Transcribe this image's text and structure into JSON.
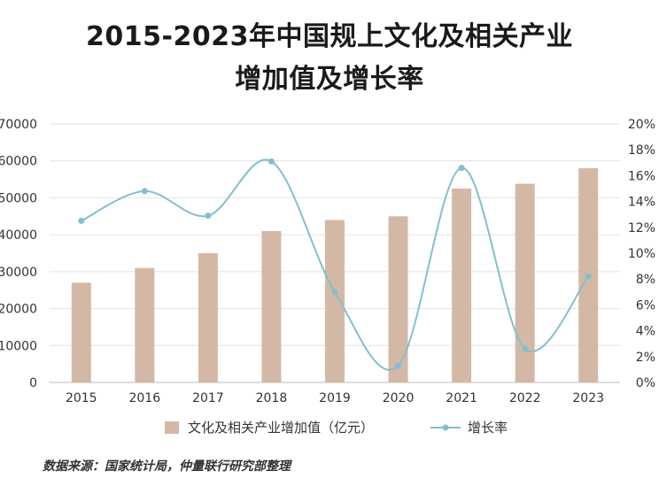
{
  "chart_data": {
    "type": "bar",
    "title_lines": [
      "2015-2023年中国规上文化及相关产业",
      "增加值及增长率"
    ],
    "categories": [
      "2015",
      "2016",
      "2017",
      "2018",
      "2019",
      "2020",
      "2021",
      "2022",
      "2023"
    ],
    "series": [
      {
        "name": "文化及相关产业增加值（亿元）",
        "type": "bar",
        "axis": "left",
        "color": "#d4b8a6",
        "values": [
          27000,
          31000,
          35000,
          41000,
          44000,
          45000,
          52500,
          53800,
          58000
        ]
      },
      {
        "name": "增长率",
        "type": "line",
        "smooth": true,
        "axis": "right",
        "color": "#84bfce",
        "values": [
          12.5,
          14.8,
          12.9,
          17.1,
          7.0,
          1.3,
          16.6,
          2.6,
          8.2
        ]
      }
    ],
    "y_left": {
      "min": 0,
      "max": 70000,
      "step": 10000
    },
    "y_right": {
      "min": 0,
      "max": 20,
      "step": 2,
      "format": "percent"
    },
    "grid": true,
    "legend_position": "bottom"
  },
  "source": "数据来源：国家统计局，仲量联行研究部整理"
}
